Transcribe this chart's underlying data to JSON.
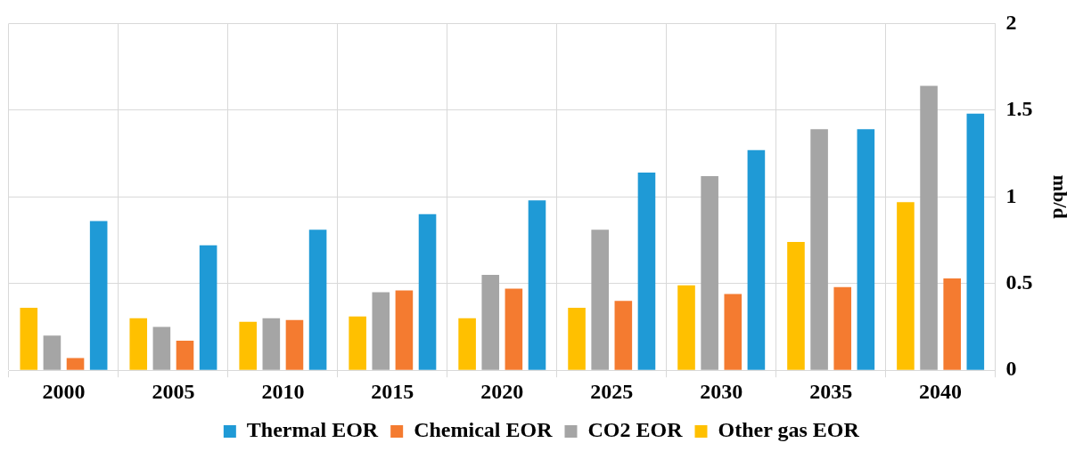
{
  "chart_data": {
    "type": "bar",
    "ylabel": "mb/d",
    "categories": [
      "2000",
      "2005",
      "2010",
      "2015",
      "2020",
      "2025",
      "2030",
      "2035",
      "2040"
    ],
    "series": [
      {
        "name": "Other gas EOR",
        "color": "#ffc000",
        "values": [
          0.36,
          0.3,
          0.28,
          0.31,
          0.3,
          0.36,
          0.49,
          0.74,
          0.97
        ]
      },
      {
        "name": "CO2 EOR",
        "color": "#a5a5a5",
        "values": [
          0.2,
          0.25,
          0.3,
          0.45,
          0.55,
          0.81,
          1.12,
          1.39,
          1.64
        ]
      },
      {
        "name": "Chemical EOR",
        "color": "#f47b30",
        "values": [
          0.07,
          0.17,
          0.29,
          0.46,
          0.47,
          0.4,
          0.44,
          0.48,
          0.53
        ]
      },
      {
        "name": "Thermal EOR",
        "color": "#1f9ad6",
        "values": [
          0.86,
          0.72,
          0.81,
          0.9,
          0.98,
          1.14,
          1.27,
          1.39,
          1.48
        ]
      }
    ],
    "ylim": [
      0,
      2
    ],
    "yticks": [
      0,
      0.5,
      1,
      1.5,
      2
    ],
    "grid": true,
    "legend": "bottom"
  }
}
